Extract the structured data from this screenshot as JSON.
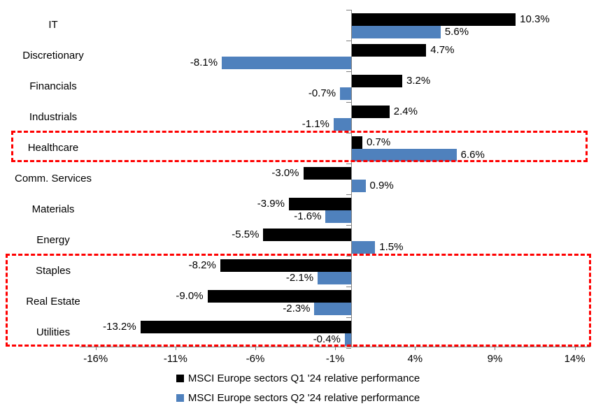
{
  "chart_data": {
    "type": "bar",
    "orientation": "horizontal",
    "title": "",
    "categories": [
      "IT",
      "Discretionary",
      "Financials",
      "Industrials",
      "Healthcare",
      "Comm. Services",
      "Materials",
      "Energy",
      "Staples",
      "Real Estate",
      "Utilities"
    ],
    "series": [
      {
        "name": "MSCI Europe sectors Q1 '24 relative performance",
        "color": "#000000",
        "values": [
          10.3,
          4.7,
          3.2,
          2.4,
          0.7,
          -3.0,
          -3.9,
          -5.5,
          -8.2,
          -9.0,
          -13.2
        ],
        "labels": [
          "10.3%",
          "4.7%",
          "3.2%",
          "2.4%",
          "0.7%",
          "-3.0%",
          "-3.9%",
          "-5.5%",
          "-8.2%",
          "-9.0%",
          "-13.2%"
        ]
      },
      {
        "name": "MSCI Europe sectors Q2 '24 relative performance",
        "color": "#4F81BD",
        "values": [
          5.6,
          -8.1,
          -0.7,
          -1.1,
          6.6,
          0.9,
          -1.6,
          1.5,
          -2.1,
          -2.3,
          -0.4
        ],
        "labels": [
          "5.6%",
          "-8.1%",
          "-0.7%",
          "-1.1%",
          "6.6%",
          "0.9%",
          "-1.6%",
          "1.5%",
          "-2.1%",
          "-2.3%",
          "-0.4%"
        ]
      }
    ],
    "x_axis": {
      "min": -17,
      "max": 15,
      "tick_values": [
        -16,
        -11,
        -6,
        -1,
        4,
        9,
        14
      ],
      "tick_labels": [
        "-16%",
        "-11%",
        "-6%",
        "-1%",
        "4%",
        "9%",
        "14%"
      ]
    },
    "grid": "off",
    "legend_position": "bottom",
    "legend": [
      {
        "label": "MSCI Europe sectors Q1 '24 relative performance",
        "color": "#000000"
      },
      {
        "label": "MSCI Europe sectors Q2 '24 relative performance",
        "color": "#4F81BD"
      }
    ],
    "highlights": [
      {
        "name": "healthcare",
        "categories": [
          "Healthcare"
        ],
        "color": "#FF0000"
      },
      {
        "name": "staples-realestate-utilities",
        "categories": [
          "Staples",
          "Real Estate",
          "Utilities"
        ],
        "color": "#FF0000"
      }
    ],
    "axis_color": "#808080"
  }
}
